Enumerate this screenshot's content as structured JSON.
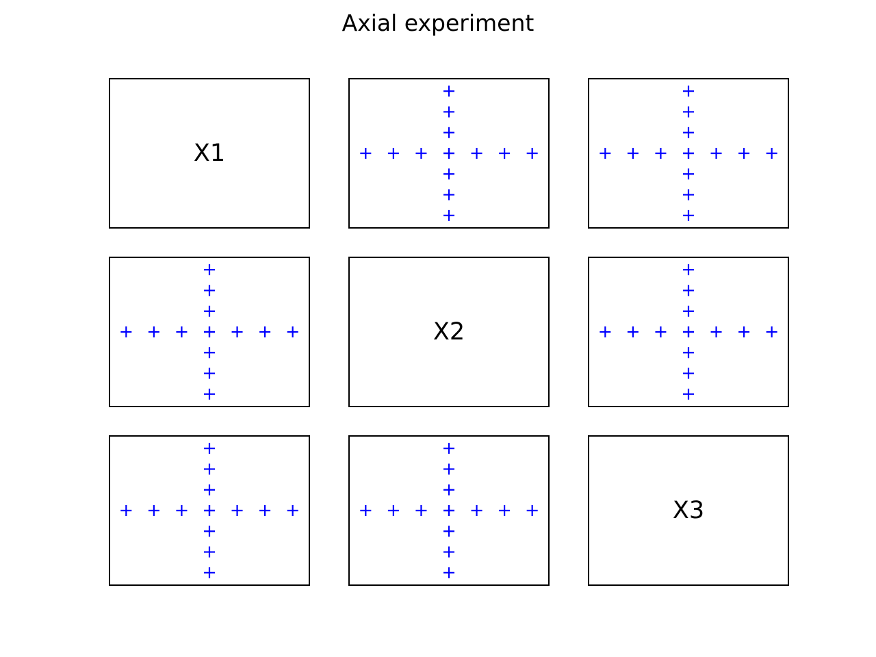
{
  "title": "Axial experiment",
  "marker": {
    "symbol": "+",
    "color": "#0000ff"
  },
  "chart_data": {
    "type": "scatter",
    "title": "Axial experiment",
    "layout": "3x3 scatter-matrix grid; diagonal panels show variable names, off-diagonal panels show axial design points",
    "variables": [
      "X1",
      "X2",
      "X3"
    ],
    "marker": "+",
    "color": "#0000ff",
    "axes_visible": false,
    "grid": false,
    "xlim": [
      -3.6,
      3.6
    ],
    "ylim": [
      -3.6,
      3.6
    ],
    "points": {
      "x": [
        -3,
        -2,
        -1,
        0,
        1,
        2,
        3,
        0,
        0,
        0,
        0,
        0,
        0,
        0
      ],
      "y": [
        0,
        0,
        0,
        0,
        0,
        0,
        0,
        -3,
        -2,
        -1,
        0,
        1,
        2,
        3
      ]
    },
    "panels": [
      {
        "row": 0,
        "col": 0,
        "diagonal": true,
        "label": "X1"
      },
      {
        "row": 0,
        "col": 1,
        "diagonal": false
      },
      {
        "row": 0,
        "col": 2,
        "diagonal": false
      },
      {
        "row": 1,
        "col": 0,
        "diagonal": false
      },
      {
        "row": 1,
        "col": 1,
        "diagonal": true,
        "label": "X2"
      },
      {
        "row": 1,
        "col": 2,
        "diagonal": false
      },
      {
        "row": 2,
        "col": 0,
        "diagonal": false
      },
      {
        "row": 2,
        "col": 1,
        "diagonal": false
      },
      {
        "row": 2,
        "col": 2,
        "diagonal": true,
        "label": "X3"
      }
    ]
  }
}
